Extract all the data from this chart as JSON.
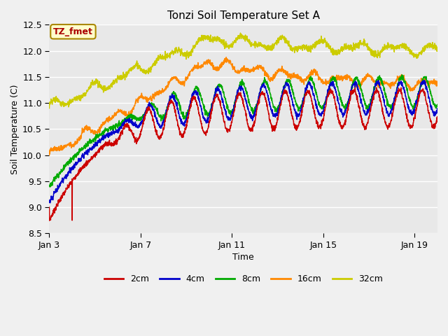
{
  "title": "Tonzi Soil Temperature Set A",
  "xlabel": "Time",
  "ylabel": "Soil Temperature (C)",
  "annotation": "TZ_fmet",
  "ylim": [
    8.5,
    12.5
  ],
  "yticks": [
    8.5,
    9.0,
    9.5,
    10.0,
    10.5,
    11.0,
    11.5,
    12.0,
    12.5
  ],
  "xtick_labels": [
    "Jan 3",
    "Jan 7",
    "Jan 11",
    "Jan 15",
    "Jan 19"
  ],
  "xtick_positions": [
    0,
    4,
    8,
    12,
    16
  ],
  "colors": {
    "2cm": "#cc0000",
    "4cm": "#0000cc",
    "8cm": "#00aa00",
    "16cm": "#ff8800",
    "32cm": "#cccc00"
  },
  "background_color": "#e8e8e8",
  "fig_bg": "#f0f0f0",
  "days": 17,
  "n_points": 2040,
  "annotation_color": "#aa0000",
  "annotation_bg": "#ffffcc",
  "annotation_edge": "#aa8800"
}
